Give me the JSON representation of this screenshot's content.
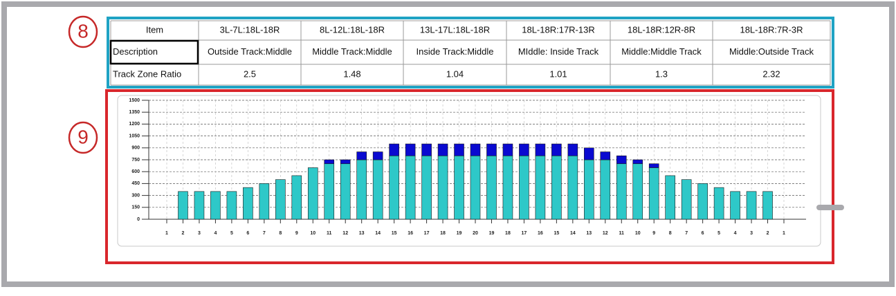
{
  "annotations": [
    "8",
    "9"
  ],
  "table": {
    "rows": [
      [
        "Item",
        "3L-7L:18L-18R",
        "8L-12L:18L-18R",
        "13L-17L:18L-18R",
        "18L-18R:17R-13R",
        "18L-18R:12R-8R",
        "18L-18R:7R-3R"
      ],
      [
        "Description",
        "Outside Track:Middle",
        "Middle Track:Middle",
        "Inside Track:Middle",
        "MIddle: Inside Track",
        "Middle:Middle Track",
        "Middle:Outside Track"
      ],
      [
        "Track Zone Ratio",
        "2.5",
        "1.48",
        "1.04",
        "1.01",
        "1.3",
        "2.32"
      ]
    ]
  },
  "chart_data": {
    "type": "stacked_bar",
    "categories": [
      "1",
      "2",
      "3",
      "4",
      "5",
      "6",
      "7",
      "8",
      "9",
      "10",
      "11",
      "12",
      "13",
      "14",
      "15",
      "16",
      "17",
      "18",
      "19",
      "20",
      "19",
      "18",
      "17",
      "16",
      "15",
      "14",
      "13",
      "12",
      "11",
      "10",
      "9",
      "8",
      "7",
      "6",
      "5",
      "4",
      "3",
      "2",
      "1"
    ],
    "series": [
      {
        "color": "#2ec8c8",
        "values": [
          0,
          350,
          350,
          350,
          350,
          400,
          450,
          500,
          550,
          650,
          700,
          700,
          750,
          750,
          800,
          800,
          800,
          800,
          800,
          800,
          800,
          800,
          800,
          800,
          800,
          800,
          750,
          750,
          700,
          700,
          650,
          550,
          500,
          450,
          400,
          350,
          350,
          350,
          0
        ]
      },
      {
        "color": "#0a0ad0",
        "values": [
          0,
          0,
          0,
          0,
          0,
          0,
          0,
          0,
          0,
          0,
          50,
          50,
          100,
          100,
          150,
          150,
          150,
          150,
          150,
          150,
          150,
          150,
          150,
          150,
          150,
          150,
          150,
          100,
          100,
          50,
          50,
          0,
          0,
          0,
          0,
          0,
          0,
          0,
          0
        ]
      }
    ],
    "ylim": [
      0,
      1500
    ],
    "yticks": [
      0,
      150,
      300,
      450,
      600,
      750,
      900,
      1050,
      1200,
      1350,
      1500
    ],
    "grid": true
  }
}
